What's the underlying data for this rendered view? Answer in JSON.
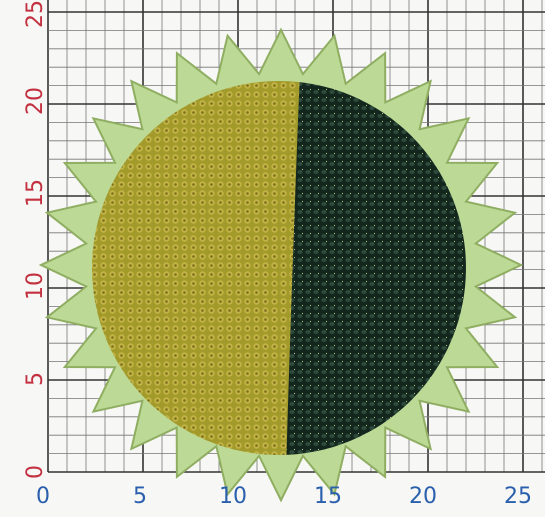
{
  "x_axis_labels": [
    "0",
    "5",
    "10",
    "15",
    "20",
    "25"
  ],
  "y_axis_labels": [
    "0",
    "5",
    "10",
    "15",
    "20",
    "25"
  ]
}
